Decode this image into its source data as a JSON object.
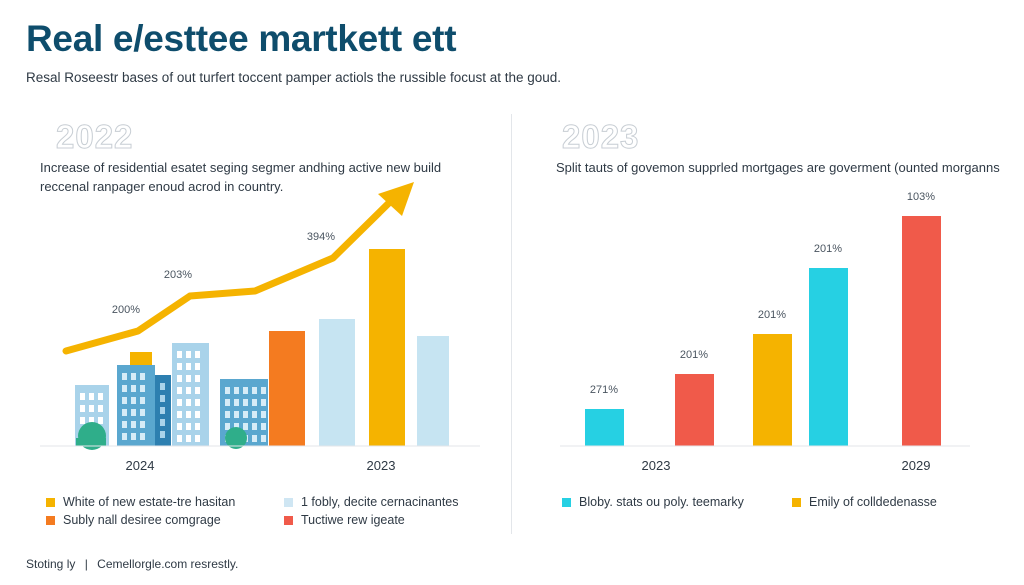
{
  "header": {
    "title": "Real e/esttee martkett ett",
    "subtitle": "Resal Roseestr bases of out turfert toccent pamper actiols the russible focust at the goud."
  },
  "left_panel": {
    "year": "2022",
    "description": "Increase of residential esatet seging segmer andhing active new build reccenal ranpager enoud acrod in country.",
    "legend": [
      {
        "label": "White of new estate-tre hasitan",
        "color": "#f5b300"
      },
      {
        "label": "1 fobly, decite cernacinantes",
        "color": "#cfe6f3"
      },
      {
        "label": "Subly nall desiree comgrage",
        "color": "#f47b20"
      },
      {
        "label": "Tuctiwe rew igeate",
        "color": "#f05a4a"
      }
    ]
  },
  "right_panel": {
    "year": "2023",
    "description": "Split tauts of govemon supprled mortgages are goverment (ounted morganns",
    "legend": [
      {
        "label": "Bloby. stats ou poly. teemarky",
        "color": "#26d0e3"
      },
      {
        "label": "Emily of colldedenasse",
        "color": "#f5b300"
      }
    ]
  },
  "footer": {
    "left": "Stoting ly",
    "separator": "|",
    "right": "Cemellorgle.com resrestly."
  },
  "colors": {
    "yellow": "#f5b300",
    "orange": "#f47b20",
    "lightblue": "#c6e4f2",
    "cyan": "#26d0e3",
    "red": "#f05a4a",
    "building_blue": "#5aa7cf",
    "building_light": "#a9d3ea",
    "tree": "#2fae8a"
  },
  "chart_data": [
    {
      "type": "bar",
      "categories": [
        "2024",
        "2023"
      ],
      "series": [
        {
          "color": "#f47b20",
          "value": 115
        },
        {
          "color": "#c6e4f2",
          "value": 127
        },
        {
          "color": "#f5b300",
          "value": 197
        },
        {
          "color": "#c6e4f2",
          "value": 110
        }
      ],
      "trend_line": {
        "color": "#f5b300",
        "values": [
          95,
          115,
          150,
          155,
          188,
          250
        ],
        "labels": [
          "200%",
          "203%",
          "394%"
        ],
        "label_positions": [
          1,
          2,
          4
        ]
      },
      "ylim": [
        0,
        260
      ]
    },
    {
      "type": "bar",
      "categories": [
        "2023",
        "2029"
      ],
      "bars": [
        {
          "label": "271%",
          "value": 37,
          "color": "#26d0e3"
        },
        {
          "label": "201%",
          "value": 72,
          "color": "#f05a4a"
        },
        {
          "label": "201%",
          "value": 112,
          "color": "#f5b300"
        },
        {
          "label": "201%",
          "value": 178,
          "color": "#26d0e3"
        },
        {
          "label": "103%",
          "value": 230,
          "color": "#f05a4a"
        }
      ],
      "ylim": [
        0,
        260
      ]
    }
  ]
}
